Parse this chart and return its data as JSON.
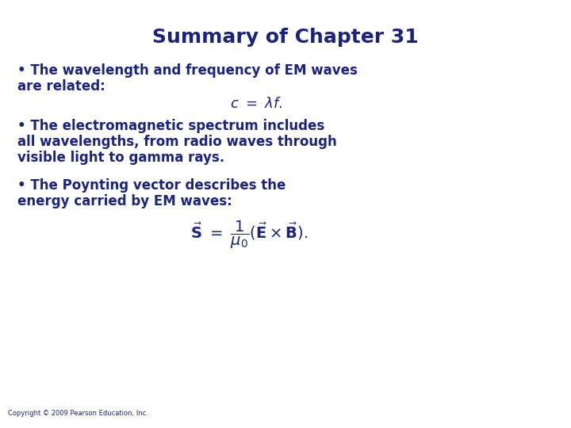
{
  "title": "Summary of Chapter 31",
  "title_color": "#1a237e",
  "title_fontsize": 18,
  "background_color": "#ffffff",
  "text_color": "#1a237e",
  "body_fontsize": 12,
  "bullet1_line1": "• The wavelength and frequency of EM waves",
  "bullet1_line2": "are related:",
  "equation1": "$c \\ = \\ \\lambda f.$",
  "bullet2_line1": "• The electromagnetic spectrum includes",
  "bullet2_line2": "all wavelengths, from radio waves through",
  "bullet2_line3": "visible light to gamma rays.",
  "bullet3_line1": "• The Poynting vector describes the",
  "bullet3_line2": "energy carried by EM waves:",
  "equation2": "$\\vec{\\mathbf{S}} \\ = \\ \\dfrac{1}{\\mu_0}(\\vec{\\mathbf{E}} \\times \\vec{\\mathbf{B}}).$",
  "copyright": "Copyright © 2009 Pearson Education, Inc.",
  "copyright_fontsize": 6
}
